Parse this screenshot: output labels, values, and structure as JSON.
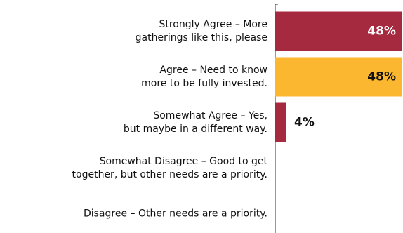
{
  "chart_data": {
    "type": "barh",
    "categories": [
      [
        "Strongly Agree – More",
        "gatherings like this, please"
      ],
      [
        "Agree – Need to know",
        "more to be fully invested."
      ],
      [
        "Somewhat Agree – Yes,",
        "but maybe in a different way."
      ],
      [
        "Somewhat Disagree – Good to get",
        "together, but other needs are a priority."
      ],
      [
        "Disagree – Other needs are a priority."
      ]
    ],
    "values": [
      48,
      48,
      4,
      0,
      0
    ],
    "value_labels": [
      "48%",
      "48%",
      "4%",
      null,
      null
    ],
    "colors": [
      "#a52a3f",
      "#fbb72f",
      "#a52a3f",
      "#a52a3f",
      "#a52a3f"
    ],
    "xlim": [
      0,
      48
    ]
  }
}
